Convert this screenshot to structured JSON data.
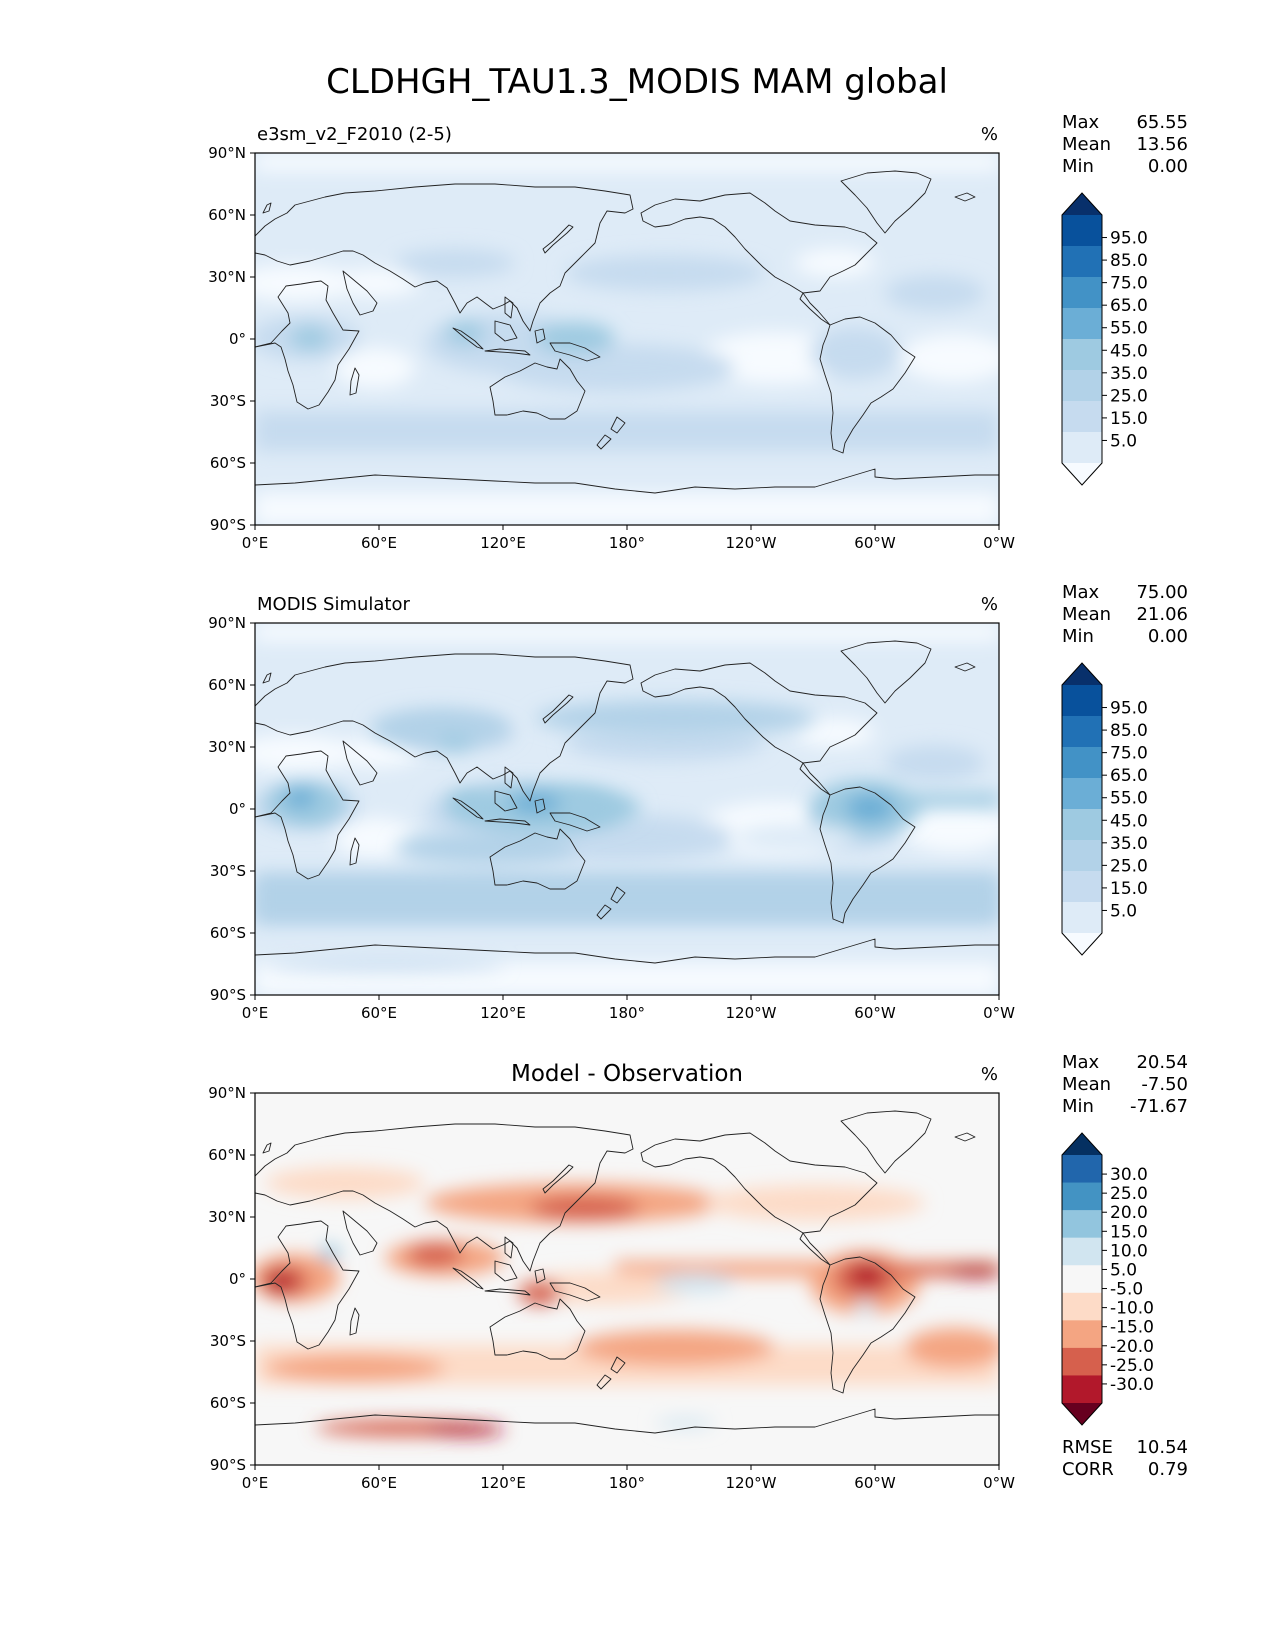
{
  "figure_title": "CLDHGH_TAU1.3_MODIS MAM global",
  "colors": {
    "blues": [
      "#f7fbff",
      "#deebf7",
      "#c6dbef",
      "#b2d2e8",
      "#9ecae1",
      "#6baed6",
      "#4292c6",
      "#2171b5",
      "#08519c",
      "#08306b"
    ],
    "rdbu": [
      "#67001f",
      "#b2182b",
      "#d6604d",
      "#f4a582",
      "#fddbc7",
      "#f7f7f7",
      "#d1e5f0",
      "#92c5de",
      "#4393c3",
      "#2166ac",
      "#053061"
    ],
    "coast": "#222222"
  },
  "lat_ticks": [
    "90°N",
    "60°N",
    "30°N",
    "0°",
    "30°S",
    "60°S",
    "90°S"
  ],
  "lon_ticks": [
    "0°E",
    "60°E",
    "120°E",
    "180°",
    "120°W",
    "60°W",
    "0°W"
  ],
  "panels": [
    {
      "name": "test",
      "title_left": "e3sm_v2_F2010 (2-5)",
      "title_center": "",
      "units": "%",
      "stats": {
        "max_label": "Max",
        "max": "65.55",
        "mean_label": "Mean",
        "mean": "13.56",
        "min_label": "Min",
        "min": "0.00"
      },
      "colorbar": {
        "palette": "blues",
        "labels": [
          "95.0",
          "85.0",
          "75.0",
          "65.0",
          "55.0",
          "45.0",
          "35.0",
          "25.0",
          "15.0",
          "5.0"
        ]
      }
    },
    {
      "name": "reference",
      "title_left": "MODIS Simulator",
      "title_center": "",
      "units": "%",
      "stats": {
        "max_label": "Max",
        "max": "75.00",
        "mean_label": "Mean",
        "mean": "21.06",
        "min_label": "Min",
        "min": "0.00"
      },
      "colorbar": {
        "palette": "blues",
        "labels": [
          "95.0",
          "85.0",
          "75.0",
          "65.0",
          "55.0",
          "45.0",
          "35.0",
          "25.0",
          "15.0",
          "5.0"
        ]
      }
    },
    {
      "name": "difference",
      "title_left": "",
      "title_center": "Model - Observation",
      "units": "%",
      "stats": {
        "max_label": "Max",
        "max": "20.54",
        "mean_label": "Mean",
        "mean": "-7.50",
        "min_label": "Min",
        "min": "-71.67"
      },
      "colorbar": {
        "palette": "rdbu",
        "labels": [
          "30.0",
          "25.0",
          "20.0",
          "15.0",
          "10.0",
          "5.0",
          "-5.0",
          "-10.0",
          "-15.0",
          "-20.0",
          "-25.0",
          "-30.0"
        ]
      },
      "metrics": {
        "rmse_label": "RMSE",
        "rmse": "10.54",
        "corr_label": "CORR",
        "corr": "0.79"
      }
    }
  ]
}
